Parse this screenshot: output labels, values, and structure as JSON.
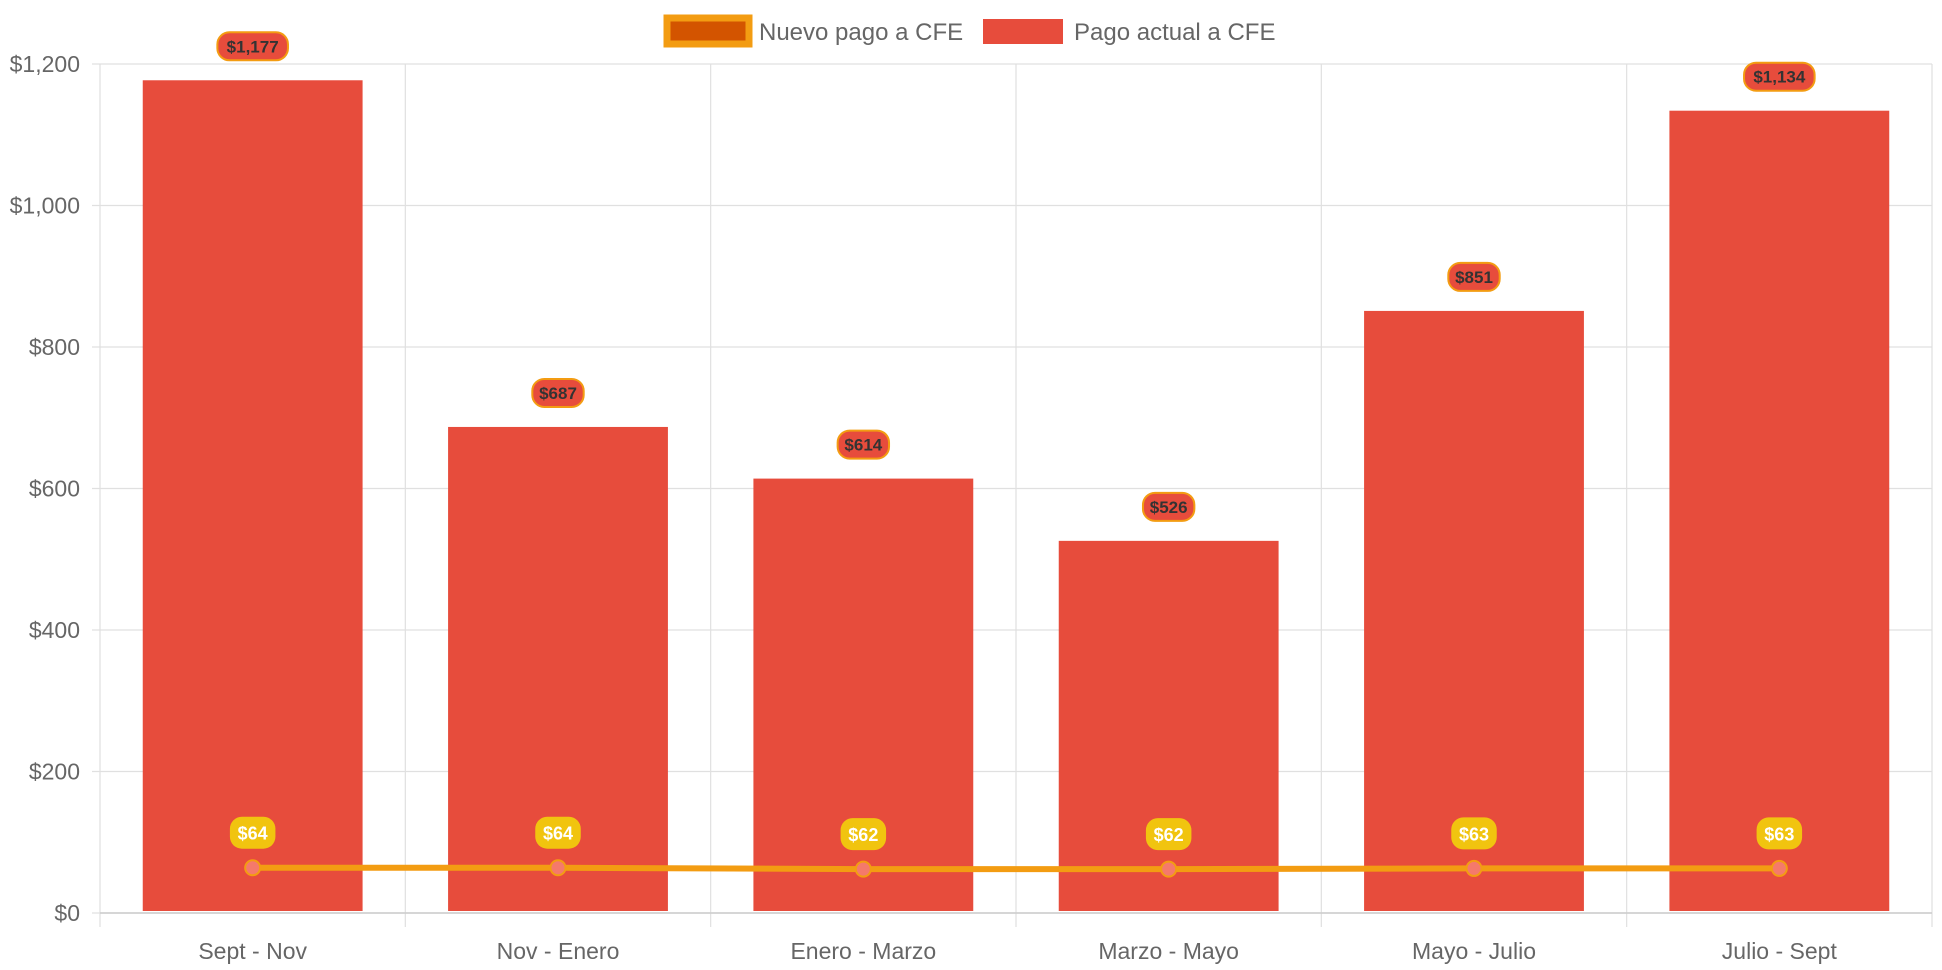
{
  "chart_data": {
    "type": "bar",
    "categories": [
      "Sept - Nov",
      "Nov - Enero",
      "Enero - Marzo",
      "Marzo - Mayo",
      "Mayo - Julio",
      "Julio - Sept"
    ],
    "series": [
      {
        "name": "Nuevo pago a CFE",
        "type": "line",
        "values": [
          64,
          64,
          62,
          62,
          63,
          63
        ],
        "labels": [
          "$64",
          "$64",
          "$62",
          "$62",
          "$63",
          "$63"
        ],
        "color": "#f39c12",
        "fill_color": "#d35400",
        "point_color": "#f5796b"
      },
      {
        "name": "Pago actual a CFE",
        "type": "bar",
        "values": [
          1177,
          687,
          614,
          526,
          851,
          1134
        ],
        "labels": [
          "$1,177",
          "$687",
          "$614",
          "$526",
          "$851",
          "$1,134"
        ],
        "color": "#e74c3c"
      }
    ],
    "y_ticks": [
      {
        "value": 0,
        "label": "$0"
      },
      {
        "value": 200,
        "label": "$200"
      },
      {
        "value": 400,
        "label": "$400"
      },
      {
        "value": 600,
        "label": "$600"
      },
      {
        "value": 800,
        "label": "$800"
      },
      {
        "value": 1000,
        "label": "$1,000"
      },
      {
        "value": 1200,
        "label": "$1,200"
      }
    ],
    "ylim": [
      0,
      1200
    ],
    "grid": true,
    "legend_position": "top-center",
    "colors": {
      "bar_label_bg": "#e74c3c",
      "bar_label_border": "#f39c12",
      "line_label_bg": "#f1c40f",
      "grid": "#e0e0e0",
      "axis_text": "#666666"
    }
  }
}
